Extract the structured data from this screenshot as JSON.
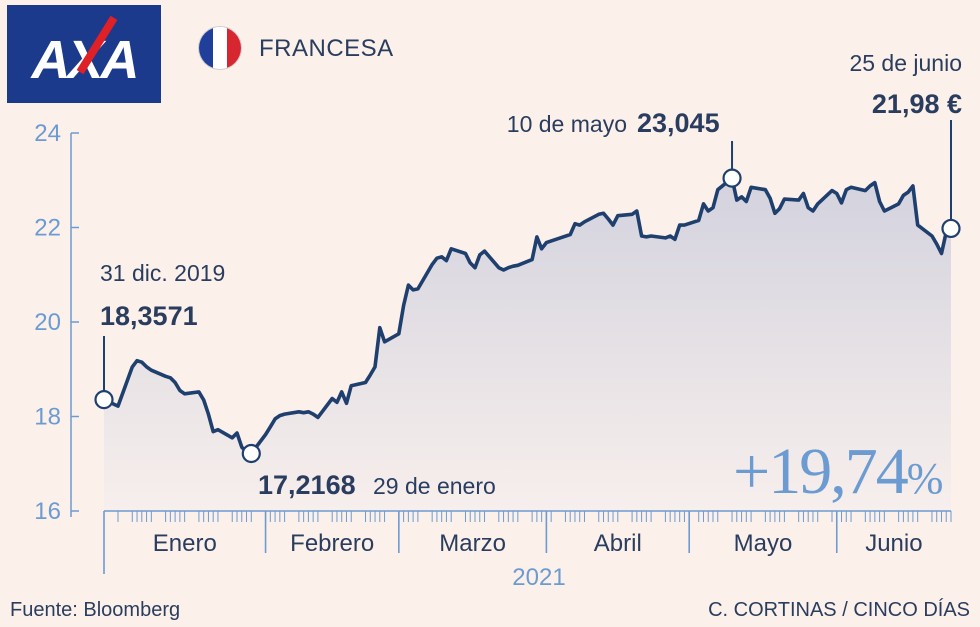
{
  "header": {
    "logo_text": "AXA",
    "country": "FRANCESA",
    "flag_colors": [
      "#1f3f9a",
      "#ffffff",
      "#d7262f"
    ]
  },
  "footer": {
    "source": "Fuente: Bloomberg",
    "credit": "C. CORTINAS / CINCO DÍAS"
  },
  "change": {
    "value": "+19,74",
    "unit": "%"
  },
  "colors": {
    "line": "#1f3f6e",
    "axis": "#6c9bd2",
    "fill_top": "#d3d2de",
    "fill_bottom": "#f7efec",
    "text": "#2a3d5f"
  },
  "chart_data": {
    "type": "line",
    "year_label": "2021",
    "ylim": [
      16,
      24
    ],
    "yticks": [
      16,
      18,
      20,
      22,
      24
    ],
    "months": [
      "Enero",
      "Febrero",
      "Marzo",
      "Abril",
      "Mayo",
      "Junio"
    ],
    "series": [
      {
        "x": [
          "2019-12-31",
          "2021-01-01",
          "2021-01-04",
          "2021-01-05",
          "2021-01-06",
          "2021-01-07",
          "2021-01-08",
          "2021-01-11",
          "2021-01-12",
          "2021-01-13",
          "2021-01-14",
          "2021-01-15",
          "2021-01-18",
          "2021-01-19",
          "2021-01-20",
          "2021-01-21",
          "2021-01-22",
          "2021-01-25",
          "2021-01-26",
          "2021-01-27",
          "2021-01-28",
          "2021-01-29",
          "2021-02-01",
          "2021-02-02",
          "2021-02-03",
          "2021-02-04",
          "2021-02-05",
          "2021-02-08",
          "2021-02-09",
          "2021-02-10",
          "2021-02-11",
          "2021-02-12",
          "2021-02-15",
          "2021-02-16",
          "2021-02-17",
          "2021-02-18",
          "2021-02-19",
          "2021-02-22",
          "2021-02-23",
          "2021-02-24",
          "2021-02-25",
          "2021-02-26",
          "2021-03-01",
          "2021-03-02",
          "2021-03-03",
          "2021-03-04",
          "2021-03-05",
          "2021-03-08",
          "2021-03-09",
          "2021-03-10",
          "2021-03-11",
          "2021-03-12",
          "2021-03-15",
          "2021-03-16",
          "2021-03-17",
          "2021-03-18",
          "2021-03-19",
          "2021-03-22",
          "2021-03-23",
          "2021-03-24",
          "2021-03-25",
          "2021-03-26",
          "2021-03-29",
          "2021-03-30",
          "2021-03-31",
          "2021-04-01",
          "2021-04-06",
          "2021-04-07",
          "2021-04-08",
          "2021-04-09",
          "2021-04-12",
          "2021-04-13",
          "2021-04-14",
          "2021-04-15",
          "2021-04-16",
          "2021-04-19",
          "2021-04-20",
          "2021-04-21",
          "2021-04-22",
          "2021-04-23",
          "2021-04-26",
          "2021-04-27",
          "2021-04-28",
          "2021-04-29",
          "2021-04-30",
          "2021-05-03",
          "2021-05-04",
          "2021-05-05",
          "2021-05-06",
          "2021-05-07",
          "2021-05-10",
          "2021-05-11",
          "2021-05-12",
          "2021-05-13",
          "2021-05-14",
          "2021-05-17",
          "2021-05-18",
          "2021-05-19",
          "2021-05-20",
          "2021-05-21",
          "2021-05-24",
          "2021-05-25",
          "2021-05-26",
          "2021-05-27",
          "2021-05-28",
          "2021-05-31",
          "2021-06-01",
          "2021-06-02",
          "2021-06-03",
          "2021-06-04",
          "2021-06-07",
          "2021-06-08",
          "2021-06-09",
          "2021-06-10",
          "2021-06-11",
          "2021-06-14",
          "2021-06-15",
          "2021-06-16",
          "2021-06-17",
          "2021-06-18",
          "2021-06-21",
          "2021-06-22",
          "2021-06-23",
          "2021-06-24",
          "2021-06-25"
        ],
        "values": [
          18.3571,
          18.22,
          19.05,
          19.18,
          19.15,
          19.05,
          18.98,
          18.85,
          18.82,
          18.72,
          18.55,
          18.48,
          18.52,
          18.35,
          18.05,
          17.68,
          17.72,
          17.55,
          17.65,
          17.35,
          17.25,
          17.2168,
          17.62,
          17.78,
          17.95,
          18.02,
          18.05,
          18.1,
          18.08,
          18.1,
          18.05,
          17.98,
          18.38,
          18.3,
          18.52,
          18.28,
          18.65,
          18.72,
          18.88,
          19.05,
          19.88,
          19.58,
          19.75,
          20.35,
          20.78,
          20.68,
          20.7,
          21.22,
          21.35,
          21.38,
          21.3,
          21.55,
          21.45,
          21.25,
          21.15,
          21.42,
          21.5,
          21.15,
          21.1,
          21.15,
          21.18,
          21.2,
          21.32,
          21.8,
          21.55,
          21.68,
          21.85,
          22.08,
          22.05,
          22.12,
          22.28,
          22.3,
          22.18,
          22.05,
          22.25,
          22.28,
          22.35,
          21.82,
          21.8,
          21.82,
          21.78,
          21.82,
          21.75,
          22.05,
          22.05,
          22.15,
          22.5,
          22.35,
          22.42,
          22.8,
          23.045,
          22.58,
          22.65,
          22.55,
          22.85,
          22.8,
          22.62,
          22.3,
          22.4,
          22.6,
          22.58,
          22.72,
          22.42,
          22.35,
          22.5,
          22.78,
          22.72,
          22.52,
          22.8,
          22.85,
          22.78,
          22.88,
          22.95,
          22.55,
          22.35,
          22.5,
          22.68,
          22.75,
          22.88,
          22.05,
          21.82,
          21.65,
          21.45,
          21.9,
          21.98
        ]
      }
    ],
    "annotations": [
      {
        "date": "31 dic. 2019",
        "value": "18,3571",
        "y": 18.3571
      },
      {
        "date": "29 de enero",
        "value": "17,2168",
        "y": 17.2168
      },
      {
        "date": "10 de mayo",
        "value": "23,045",
        "y": 23.045
      },
      {
        "date": "25 de junio",
        "value": "21,98 €",
        "y": 21.98
      }
    ]
  }
}
